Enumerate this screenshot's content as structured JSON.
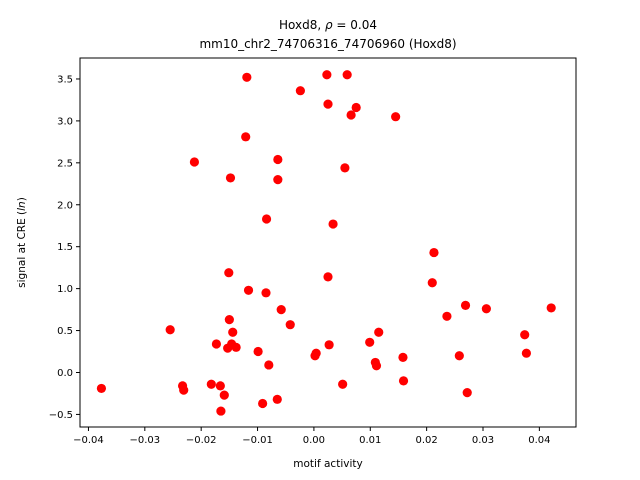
{
  "chart_data": {
    "type": "scatter",
    "title_line1_prefix": "Hoxd8, ",
    "title_line1_rho": "ρ",
    "title_line1_suffix": " = 0.04",
    "title_line2": "mm10_chr2_74706316_74706960 (Hoxd8)",
    "xlabel": "motif activity",
    "ylabel_prefix": "signal at CRE (",
    "ylabel_italic": "ln",
    "ylabel_suffix": ")",
    "xlim": [
      -0.0415,
      0.0465
    ],
    "ylim": [
      -0.65,
      3.75
    ],
    "xticks": [
      -0.04,
      -0.03,
      -0.02,
      -0.01,
      0.0,
      0.01,
      0.02,
      0.03,
      0.04
    ],
    "xtick_labels": [
      "−0.04",
      "−0.03",
      "−0.02",
      "−0.01",
      "0.00",
      "0.01",
      "0.02",
      "0.03",
      "0.04"
    ],
    "yticks": [
      -0.5,
      0.0,
      0.5,
      1.0,
      1.5,
      2.0,
      2.5,
      3.0,
      3.5
    ],
    "ytick_labels": [
      "−0.5",
      "0.0",
      "0.5",
      "1.0",
      "1.5",
      "2.0",
      "2.5",
      "3.0",
      "3.5"
    ],
    "grid": false,
    "marker_color": "#ff0000",
    "points": [
      {
        "x": -0.0377,
        "y": -0.19
      },
      {
        "x": -0.0255,
        "y": 0.51
      },
      {
        "x": -0.0233,
        "y": -0.16
      },
      {
        "x": -0.0231,
        "y": -0.21
      },
      {
        "x": -0.0212,
        "y": 2.51
      },
      {
        "x": -0.0182,
        "y": -0.14
      },
      {
        "x": -0.0173,
        "y": 0.34
      },
      {
        "x": -0.0166,
        "y": -0.16
      },
      {
        "x": -0.0165,
        "y": -0.46
      },
      {
        "x": -0.0159,
        "y": -0.27
      },
      {
        "x": -0.0153,
        "y": 0.29
      },
      {
        "x": -0.0151,
        "y": 1.19
      },
      {
        "x": -0.015,
        "y": 0.63
      },
      {
        "x": -0.0148,
        "y": 2.32
      },
      {
        "x": -0.0146,
        "y": 0.34
      },
      {
        "x": -0.0144,
        "y": 0.48
      },
      {
        "x": -0.0138,
        "y": 0.3
      },
      {
        "x": -0.0121,
        "y": 2.81
      },
      {
        "x": -0.0119,
        "y": 3.52
      },
      {
        "x": -0.0116,
        "y": 0.98
      },
      {
        "x": -0.0099,
        "y": 0.25
      },
      {
        "x": -0.0091,
        "y": -0.37
      },
      {
        "x": -0.0085,
        "y": 0.95
      },
      {
        "x": -0.0084,
        "y": 1.83
      },
      {
        "x": -0.008,
        "y": 0.09
      },
      {
        "x": -0.0065,
        "y": -0.32
      },
      {
        "x": -0.0064,
        "y": 2.54
      },
      {
        "x": -0.0064,
        "y": 2.3
      },
      {
        "x": -0.0058,
        "y": 0.75
      },
      {
        "x": -0.0042,
        "y": 0.57
      },
      {
        "x": -0.0024,
        "y": 3.36
      },
      {
        "x": 0.0002,
        "y": 0.2
      },
      {
        "x": 0.0004,
        "y": 0.23
      },
      {
        "x": 0.0023,
        "y": 3.55
      },
      {
        "x": 0.0025,
        "y": 3.2
      },
      {
        "x": 0.0025,
        "y": 1.14
      },
      {
        "x": 0.0027,
        "y": 0.33
      },
      {
        "x": 0.0034,
        "y": 1.77
      },
      {
        "x": 0.0051,
        "y": -0.14
      },
      {
        "x": 0.0055,
        "y": 2.44
      },
      {
        "x": 0.0059,
        "y": 3.55
      },
      {
        "x": 0.0066,
        "y": 3.07
      },
      {
        "x": 0.0075,
        "y": 3.16
      },
      {
        "x": 0.0099,
        "y": 0.36
      },
      {
        "x": 0.0109,
        "y": 0.12
      },
      {
        "x": 0.0111,
        "y": 0.08
      },
      {
        "x": 0.0115,
        "y": 0.48
      },
      {
        "x": 0.0145,
        "y": 3.05
      },
      {
        "x": 0.0158,
        "y": 0.18
      },
      {
        "x": 0.0159,
        "y": -0.1
      },
      {
        "x": 0.021,
        "y": 1.07
      },
      {
        "x": 0.0213,
        "y": 1.43
      },
      {
        "x": 0.0236,
        "y": 0.67
      },
      {
        "x": 0.0258,
        "y": 0.2
      },
      {
        "x": 0.0269,
        "y": 0.8
      },
      {
        "x": 0.0272,
        "y": -0.24
      },
      {
        "x": 0.0306,
        "y": 0.76
      },
      {
        "x": 0.0374,
        "y": 0.45
      },
      {
        "x": 0.0377,
        "y": 0.23
      },
      {
        "x": 0.0421,
        "y": 0.77
      }
    ]
  }
}
